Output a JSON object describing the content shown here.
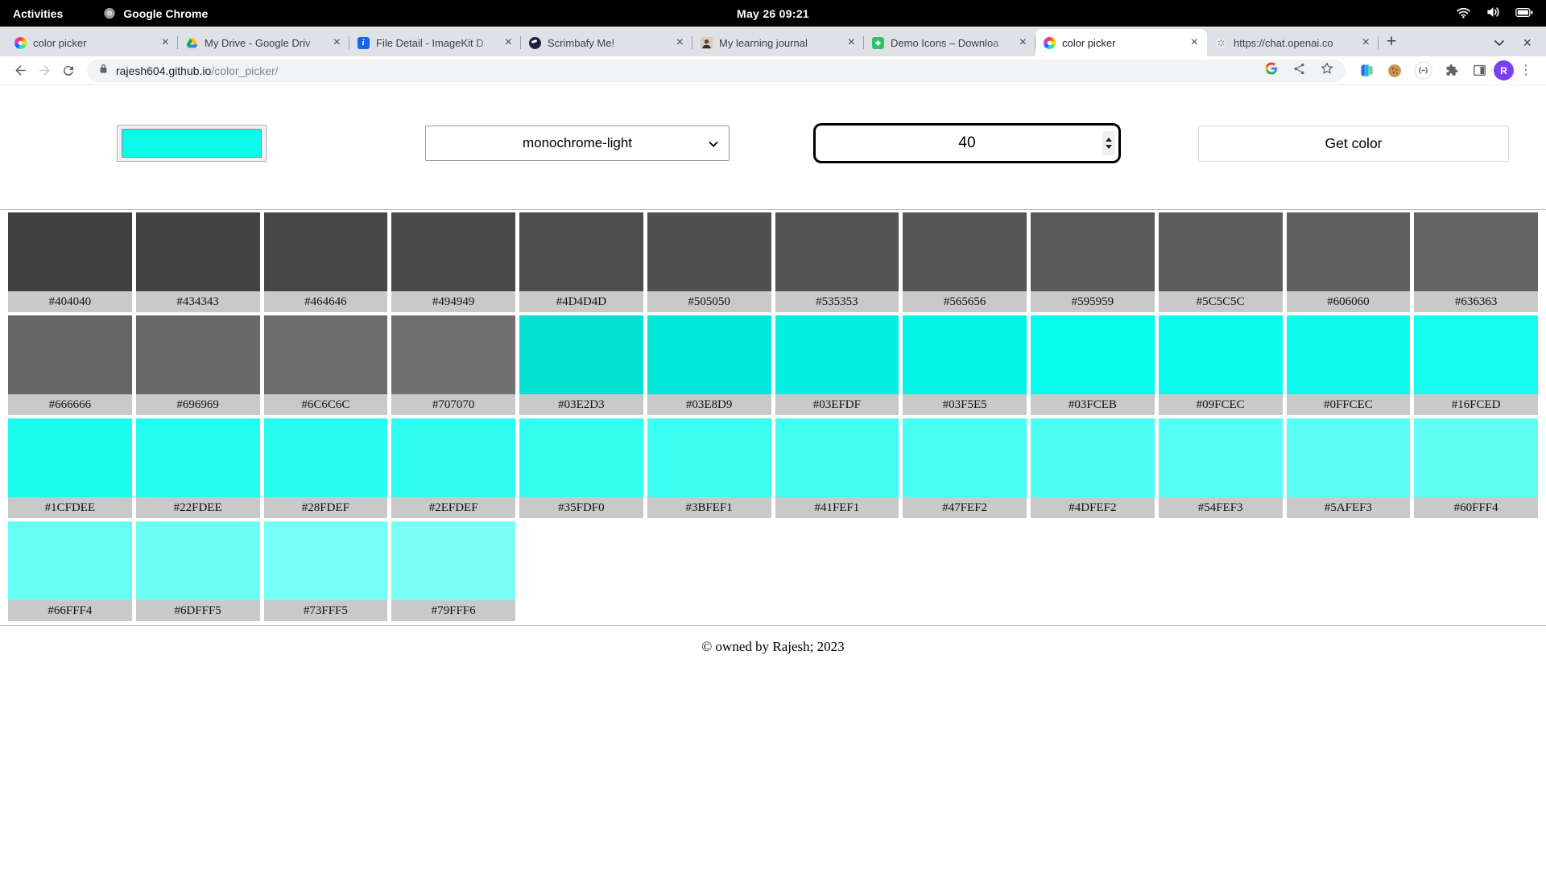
{
  "system_bar": {
    "activities": "Activities",
    "app_name": "Google Chrome",
    "clock": "May 26  09:21",
    "status_icons": [
      "wifi-icon",
      "volume-icon",
      "battery-icon"
    ]
  },
  "browser": {
    "tabs": [
      {
        "label": "color picker",
        "favicon": "color-wheel",
        "active": false
      },
      {
        "label": "My Drive - Google Driv",
        "favicon": "google-drive",
        "active": false
      },
      {
        "label": "File Detail - ImageKit D",
        "favicon": "imagekit",
        "active": false
      },
      {
        "label": "Scrimbafy Me!",
        "favicon": "scrimba",
        "active": false
      },
      {
        "label": "My learning journal",
        "favicon": "avatar-photo",
        "active": false
      },
      {
        "label": "Demo Icons – Downloa",
        "favicon": "flaticon",
        "active": false
      },
      {
        "label": "color picker",
        "favicon": "color-wheel",
        "active": true
      },
      {
        "label": "https://chat.openai.co",
        "favicon": "openai",
        "active": false
      }
    ],
    "new_tab_glyph": "+",
    "url": {
      "host": "rajesh604.github.io",
      "path": "/color_picker/"
    },
    "profile_initial": "R",
    "toolbar_icon_names": [
      "back-icon",
      "forward-icon",
      "reload-icon",
      "lock-icon",
      "google-g-icon",
      "share-icon",
      "bookmark-star-icon",
      "ext-circle-icon",
      "cookie-icon",
      "ext-meet-icon",
      "extensions-puzzle-icon",
      "side-panel-icon",
      "profile-avatar",
      "menu-kebab-icon"
    ]
  },
  "controls": {
    "color_swatch": "#0AFAEA",
    "scheme_select": "monochrome-light",
    "count_value": "40",
    "get_color_label": "Get color"
  },
  "palette": {
    "label_bg": "#C9C9C9",
    "swatches": [
      "#404040",
      "#434343",
      "#464646",
      "#494949",
      "#4D4D4D",
      "#505050",
      "#535353",
      "#565656",
      "#595959",
      "#5C5C5C",
      "#606060",
      "#636363",
      "#666666",
      "#696969",
      "#6C6C6C",
      "#707070",
      "#03E2D3",
      "#03E8D9",
      "#03EFDF",
      "#03F5E5",
      "#03FCEB",
      "#09FCEC",
      "#0FFCEC",
      "#16FCED",
      "#1CFDEE",
      "#22FDEE",
      "#28FDEF",
      "#2EFDEF",
      "#35FDF0",
      "#3BFEF1",
      "#41FEF1",
      "#47FEF2",
      "#4DFEF2",
      "#54FEF3",
      "#5AFEF3",
      "#60FFF4",
      "#66FFF4",
      "#6DFFF5",
      "#73FFF5",
      "#79FFF6"
    ]
  },
  "footer": {
    "copyright": "© owned by Rajesh; 2023"
  }
}
